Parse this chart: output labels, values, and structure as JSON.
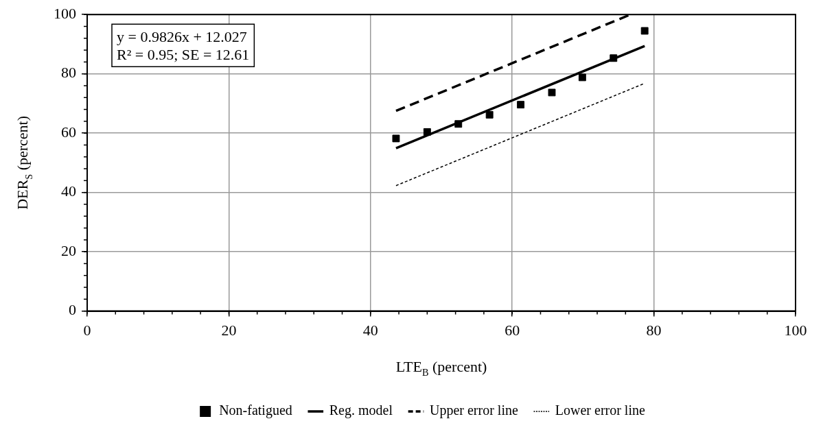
{
  "chart_data": {
    "type": "scatter",
    "xlabel": "LTE$_{B}$ (percent)",
    "ylabel": "DER$_{S}$ (percent)",
    "xlim": [
      0,
      100
    ],
    "xticks": [
      0,
      20,
      40,
      60,
      80,
      100
    ],
    "ylim": [
      0,
      100
    ],
    "yticks": [
      0,
      20,
      40,
      60,
      80,
      100
    ],
    "grid": true,
    "legend": "bottom",
    "annotations": [
      "y = 0.9826x + 12.027",
      "R² = 0.95; SE = 12.61"
    ],
    "series": [
      {
        "name": "Non-fatigued",
        "type": "scatter",
        "marker": "square",
        "color": "#000000",
        "x": [
          43.6,
          48.0,
          52.4,
          56.8,
          61.2,
          65.6,
          69.9,
          74.3,
          78.7
        ],
        "values": [
          58.2,
          60.4,
          63.1,
          66.2,
          69.6,
          73.7,
          78.8,
          85.3,
          94.5
        ]
      },
      {
        "name": "Reg. model",
        "type": "line",
        "marker": "none",
        "line_style": "solid",
        "color": "#000000",
        "x": [
          43.6,
          78.7
        ],
        "values": [
          54.9,
          89.4
        ]
      },
      {
        "name": "Upper error line",
        "type": "line",
        "marker": "none",
        "line_style": "dashed",
        "color": "#000000",
        "x": [
          43.6,
          76.7
        ],
        "values": [
          67.5,
          100
        ]
      },
      {
        "name": "Lower error line",
        "type": "line",
        "marker": "none",
        "line_style": "dotted",
        "color": "#000000",
        "x": [
          43.6,
          78.7
        ],
        "values": [
          42.3,
          76.8
        ]
      }
    ]
  }
}
